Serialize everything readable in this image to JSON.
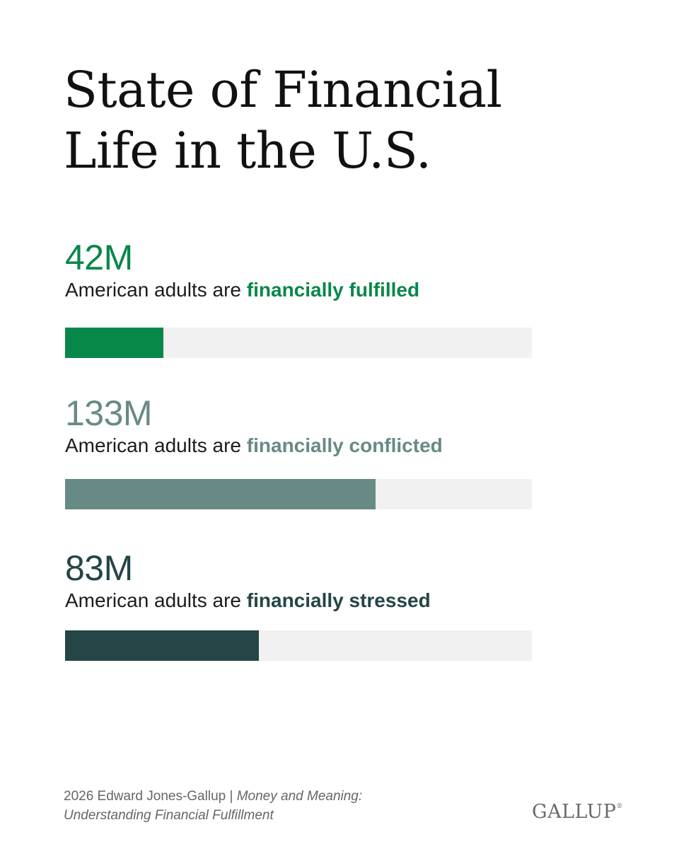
{
  "title": {
    "line1": "State of Financial",
    "line2": "Life in the U.S."
  },
  "colors": {
    "fulfilled": "#08874a",
    "conflicted": "#688a86",
    "stressed": "#254546",
    "track": "#f1f1f1"
  },
  "chart_data": {
    "type": "bar",
    "orientation": "horizontal",
    "categories": [
      "financially fulfilled",
      "financially conflicted",
      "financially stressed"
    ],
    "values": [
      42,
      133,
      83
    ],
    "labels": [
      "42M",
      "133M",
      "83M"
    ],
    "unit": "M",
    "xlim": [
      0,
      200
    ],
    "grid": false,
    "legend": "none"
  },
  "stats": [
    {
      "value": "42M",
      "prefix": "American adults are ",
      "highlight": "financially fulfilled",
      "color": "#08874a"
    },
    {
      "value": "133M",
      "prefix": "American adults are ",
      "highlight": "financially conflicted",
      "color": "#688a86"
    },
    {
      "value": "83M",
      "prefix": "American adults are ",
      "highlight": "financially stressed",
      "color": "#254546"
    }
  ],
  "footer": {
    "source": "2026 Edward Jones-Gallup | ",
    "publication": "Money and Meaning: Understanding Financial Fulfillment"
  },
  "logo": {
    "text": "GALLUP",
    "mark": "®"
  }
}
